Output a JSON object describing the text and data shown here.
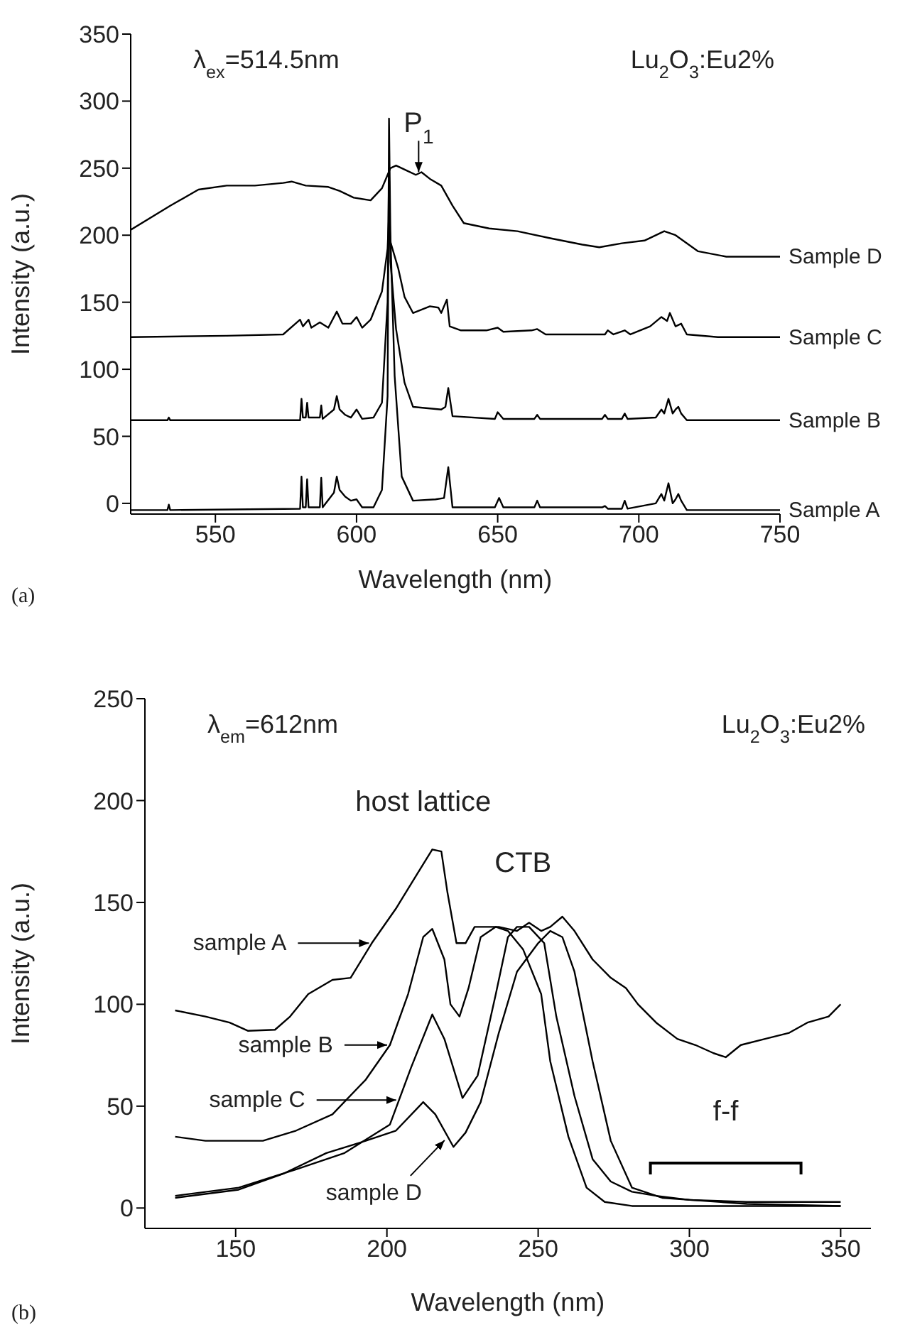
{
  "chart_data": [
    {
      "type": "line",
      "xlabel": "Wavelength (nm)",
      "ylabel": "Intensity (a.u.)",
      "xlim": [
        520,
        750
      ],
      "ylim": [
        -8,
        350
      ],
      "xticks": [
        550,
        600,
        650,
        700,
        750
      ],
      "yticks": [
        0,
        50,
        100,
        150,
        200,
        250,
        300,
        350
      ],
      "annotations": [
        "λ$_{ex}$=514.5nm",
        "Lu$_{2}$O$_{3}$:Eu2%",
        "(a)",
        {
          "text": "P$_{1}$",
          "x": 622,
          "y": 245
        }
      ],
      "series": [
        {
          "name": "Sample A",
          "color": "#000000",
          "x": [
            520,
            533,
            533.5,
            534,
            580,
            580.5,
            581,
            582,
            582.5,
            583,
            587,
            587.5,
            588,
            592,
            593,
            594,
            596,
            598,
            600,
            602,
            606,
            609,
            611,
            611.5,
            612,
            613.5,
            616,
            620,
            628,
            631,
            632.5,
            634,
            649,
            650.5,
            652,
            663,
            664,
            665,
            687,
            688,
            689,
            694,
            695,
            696,
            706,
            708,
            709,
            710.5,
            712,
            713,
            714,
            715,
            717,
            750
          ],
          "values": [
            -5,
            -5,
            -1,
            -5,
            -4,
            20,
            -3,
            -3,
            18,
            -3,
            -3,
            19,
            -3,
            8,
            20,
            10,
            5,
            2,
            3,
            -3,
            -3,
            10,
            80,
            287,
            200,
            95,
            20,
            2,
            3,
            4,
            27,
            -3,
            -3,
            4,
            -3,
            -3,
            2,
            -3,
            -3,
            -2,
            -4,
            -4,
            2,
            -4,
            0,
            7,
            2,
            15,
            0,
            3,
            7,
            2,
            -5,
            -5
          ]
        },
        {
          "name": "Sample B",
          "color": "#000000",
          "x": [
            520,
            533,
            533.5,
            534,
            580,
            580.5,
            581,
            582,
            582.5,
            583,
            587,
            587.5,
            588,
            592,
            593,
            594,
            596,
            598,
            600,
            602,
            606,
            609,
            611,
            611.5,
            612,
            614,
            617,
            620,
            630,
            631.5,
            632.5,
            634,
            649,
            650,
            652,
            663,
            664,
            665,
            687,
            688,
            689,
            694,
            695,
            696,
            706,
            708,
            709,
            710.5,
            712,
            713,
            714,
            715,
            717,
            750
          ],
          "values": [
            62,
            62,
            64,
            62,
            62,
            78,
            64,
            64,
            75,
            64,
            64,
            73,
            63,
            70,
            80,
            70,
            66,
            64,
            70,
            63,
            64,
            75,
            150,
            250,
            180,
            130,
            90,
            72,
            70,
            72,
            86,
            65,
            63,
            68,
            63,
            63,
            66,
            63,
            63,
            66,
            63,
            63,
            67,
            63,
            64,
            70,
            67,
            78,
            67,
            70,
            72,
            67,
            62,
            62
          ]
        },
        {
          "name": "Sample C",
          "color": "#000000",
          "x": [
            520,
            554,
            574,
            580,
            581,
            583,
            584,
            587,
            590,
            593,
            595,
            598,
            600,
            602,
            605,
            609,
            611,
            611.5,
            612,
            614.8,
            617,
            620,
            626,
            629,
            630,
            632,
            633,
            637,
            646,
            650,
            652,
            662,
            664,
            667,
            688,
            689,
            691,
            695,
            697,
            704,
            708,
            710,
            711,
            713,
            715,
            717,
            728,
            750
          ],
          "values": [
            124,
            125,
            126,
            137,
            132,
            137,
            131,
            135,
            131,
            143,
            134,
            134,
            139,
            131,
            137,
            158,
            190,
            215,
            195,
            175,
            154,
            142,
            147,
            146,
            142,
            152,
            132,
            129,
            129,
            131,
            128,
            129,
            130,
            126,
            126,
            129,
            126,
            129,
            126,
            132,
            139,
            136,
            142,
            132,
            134,
            126,
            124,
            124
          ]
        },
        {
          "name": "Sample D",
          "color": "#000000",
          "x": [
            520,
            534,
            544,
            554,
            564,
            574,
            577,
            582,
            590,
            594,
            599,
            605,
            609,
            612,
            614,
            618,
            621,
            623,
            626,
            630,
            634,
            638,
            647,
            657,
            668,
            680,
            686,
            694,
            702,
            709,
            713,
            721,
            731,
            750
          ],
          "values": [
            204,
            222,
            234,
            237,
            237,
            239,
            240,
            237,
            236,
            233,
            228,
            226,
            235,
            250,
            252,
            248,
            245,
            247,
            242,
            237,
            222,
            209,
            205,
            203,
            198,
            193,
            191,
            194,
            196,
            203,
            200,
            188,
            184,
            184
          ]
        }
      ]
    },
    {
      "type": "line",
      "xlabel": "Wavelength (nm)",
      "ylabel": "Intensity (a.u.)",
      "xlim": [
        120,
        360
      ],
      "ylim": [
        -10,
        250
      ],
      "xticks": [
        150,
        200,
        250,
        300,
        350
      ],
      "yticks": [
        0,
        50,
        100,
        150,
        200,
        250
      ],
      "legend": "left",
      "annotations": [
        "λ$_{em}$=612nm",
        "Lu$_{2}$O$_{3}$:Eu2%",
        "(b)",
        "host lattice",
        "CTB",
        "f-f"
      ],
      "series": [
        {
          "name": "sample A",
          "color": "#000000",
          "x": [
            130,
            140,
            148,
            154,
            163,
            168,
            174,
            182,
            188,
            195,
            203,
            210,
            215,
            218,
            220,
            223,
            226,
            229,
            233,
            237,
            243,
            247,
            251,
            254,
            258,
            262,
            268,
            274,
            279,
            283,
            289,
            296,
            302,
            308,
            312,
            317,
            325,
            333,
            339,
            346,
            350
          ],
          "values": [
            97,
            94,
            91,
            87,
            87.5,
            94,
            105,
            112,
            113,
            130,
            147,
            164,
            176,
            175,
            155,
            130,
            130,
            138,
            138,
            138,
            136,
            140,
            136,
            138,
            143,
            136,
            122,
            113,
            108,
            100,
            91,
            83,
            80,
            76,
            74,
            80,
            83,
            86,
            91,
            94,
            100
          ]
        },
        {
          "name": "sample B",
          "color": "#000000",
          "x": [
            130,
            140,
            159,
            170,
            182,
            193,
            201,
            207,
            212,
            215,
            219,
            221,
            224,
            227,
            231,
            236,
            240,
            245,
            251,
            254,
            260,
            266,
            272,
            281,
            350
          ],
          "values": [
            35,
            33,
            33,
            38,
            46,
            63,
            80,
            105,
            133,
            137,
            122,
            100,
            94,
            108,
            133,
            138,
            136,
            127,
            105,
            72,
            35,
            10,
            3,
            1,
            1
          ]
        },
        {
          "name": "sample C",
          "color": "#000000",
          "x": [
            130,
            151,
            170,
            186,
            201,
            208,
            215,
            219,
            225,
            230,
            236,
            240,
            243,
            247,
            252,
            256,
            262,
            268,
            274,
            281,
            289,
            300,
            319,
            350
          ],
          "values": [
            6,
            10,
            19,
            27,
            41,
            69,
            95,
            83,
            54,
            65,
            105,
            133,
            138,
            138,
            130,
            94,
            55,
            24,
            13,
            8,
            6,
            4,
            3,
            3
          ]
        },
        {
          "name": "sample D",
          "color": "#000000",
          "x": [
            130,
            151,
            166,
            180,
            193,
            203,
            212,
            216,
            222,
            226,
            231,
            237,
            243,
            250,
            254,
            258,
            262,
            268,
            274,
            281,
            291,
            319,
            350
          ],
          "values": [
            5,
            9,
            17,
            27,
            33,
            38,
            52,
            46,
            30,
            37,
            52,
            86,
            116,
            130,
            136,
            133,
            116,
            72,
            33,
            10,
            5,
            2,
            1
          ]
        }
      ]
    }
  ]
}
